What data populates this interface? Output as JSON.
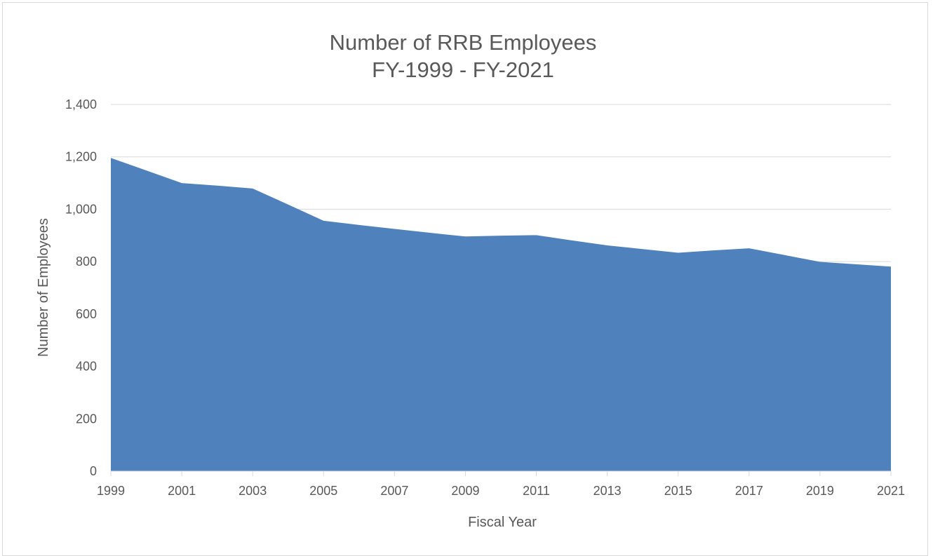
{
  "chart_data": {
    "type": "area",
    "title_lines": [
      "Number of RRB Employees",
      "FY-1999 - FY-2021"
    ],
    "xlabel": "Fiscal Year",
    "ylabel": "Number of Employees",
    "x": [
      1999,
      2000,
      2001,
      2002,
      2003,
      2004,
      2005,
      2006,
      2007,
      2008,
      2009,
      2010,
      2011,
      2012,
      2013,
      2014,
      2015,
      2016,
      2017,
      2018,
      2019,
      2020,
      2021
    ],
    "series": [
      {
        "values": [
          1196,
          1148,
          1100,
          1090,
          1079,
          1018,
          956,
          940,
          925,
          910,
          896,
          899,
          901,
          881,
          862,
          848,
          834,
          843,
          851,
          825,
          799,
          790,
          781
        ]
      }
    ],
    "x_ticks": [
      "1999",
      "2001",
      "2003",
      "2005",
      "2007",
      "2009",
      "2011",
      "2013",
      "2015",
      "2017",
      "2019",
      "2021"
    ],
    "y_ticks": [
      "0",
      "200",
      "400",
      "600",
      "800",
      "1,000",
      "1,200",
      "1,400"
    ],
    "ylim": [
      0,
      1400
    ],
    "xlim": [
      1999,
      2021
    ],
    "grid": "horizontal",
    "fill_color": "#4f81bd",
    "grid_color": "#d9d9d9",
    "text_color": "#595959"
  }
}
